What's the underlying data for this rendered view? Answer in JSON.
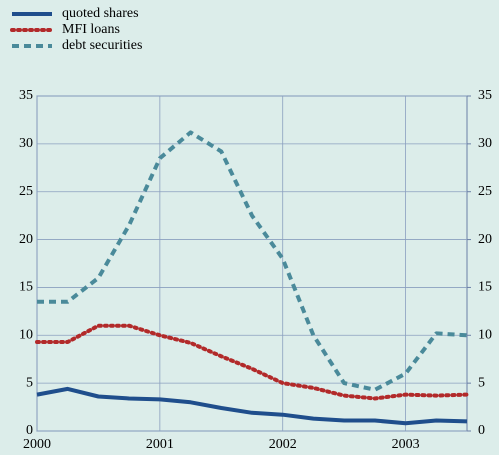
{
  "chart_data": {
    "type": "line",
    "x": [
      2000,
      2000.25,
      2000.5,
      2000.75,
      2001,
      2001.25,
      2001.5,
      2001.75,
      2002,
      2002.25,
      2002.5,
      2002.75,
      2003,
      2003.25,
      2003.5
    ],
    "series": [
      {
        "name": "quoted shares",
        "color": "#1f4e8c",
        "dash": "solid",
        "values": [
          3.8,
          4.4,
          3.6,
          3.4,
          3.3,
          3.0,
          2.4,
          1.9,
          1.7,
          1.3,
          1.1,
          1.1,
          0.8,
          1.1,
          1.0
        ]
      },
      {
        "name": "MFI loans",
        "color": "#b22a2a",
        "dash": "dotted",
        "values": [
          9.3,
          9.3,
          11,
          11,
          10,
          9.2,
          7.8,
          6.5,
          5,
          4.5,
          3.7,
          3.4,
          3.8,
          3.7,
          3.8
        ]
      },
      {
        "name": "debt securities",
        "color": "#4a8a9a",
        "dash": "dashed",
        "values": [
          13.5,
          13.5,
          16,
          21.5,
          28.5,
          31.2,
          29.2,
          22.5,
          18,
          10,
          5,
          4.3,
          6,
          10.2,
          10
        ]
      }
    ],
    "xlim": [
      2000,
      2003.5
    ],
    "xticks": [
      2000,
      2001,
      2002,
      2003
    ],
    "ylim": [
      0,
      35
    ],
    "yticks": [
      0,
      5,
      10,
      15,
      20,
      25,
      30,
      35
    ],
    "y2lim": [
      0,
      35
    ],
    "y2ticks": [
      0,
      5,
      10,
      15,
      20,
      25,
      30,
      35
    ],
    "grid": true,
    "legend": "top-left"
  }
}
